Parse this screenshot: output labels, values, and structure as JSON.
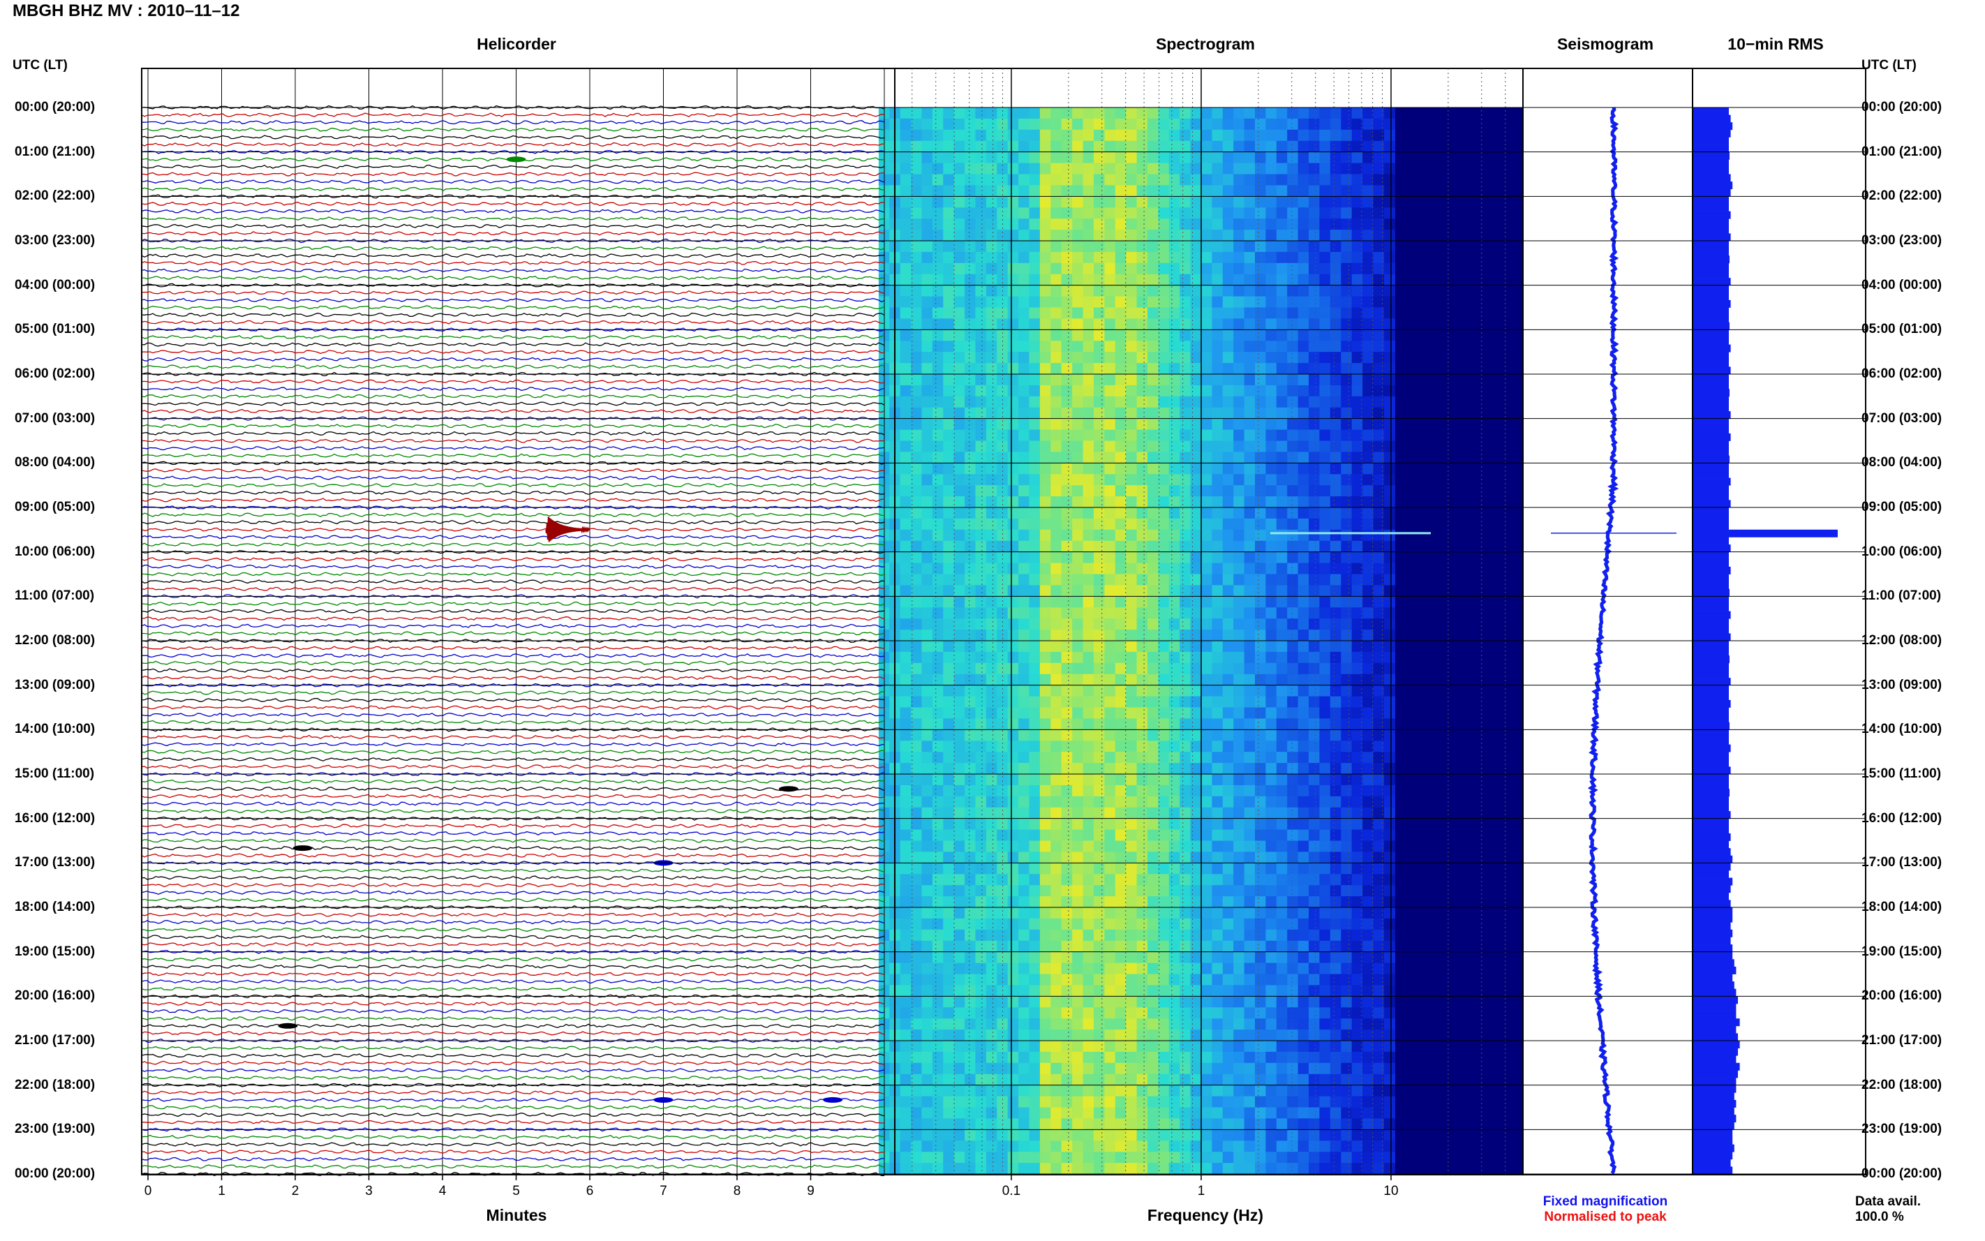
{
  "title": "MBGH BHZ MV : 2010–11–12",
  "panels": {
    "helicorder": "Helicorder",
    "spectrogram": "Spectrogram",
    "seismogram": "Seismogram",
    "rms": "10−min RMS"
  },
  "time_axis": {
    "left_header": "UTC (LT)",
    "right_header": "UTC (LT)",
    "labels": [
      "00:00 (20:00)",
      "01:00 (21:00)",
      "02:00 (22:00)",
      "03:00 (23:00)",
      "04:00 (00:00)",
      "05:00 (01:00)",
      "06:00 (02:00)",
      "07:00 (03:00)",
      "08:00 (04:00)",
      "09:00 (05:00)",
      "10:00 (06:00)",
      "11:00 (07:00)",
      "12:00 (08:00)",
      "13:00 (09:00)",
      "14:00 (10:00)",
      "15:00 (11:00)",
      "16:00 (12:00)",
      "17:00 (13:00)",
      "18:00 (14:00)",
      "19:00 (15:00)",
      "20:00 (16:00)",
      "21:00 (17:00)",
      "22:00 (18:00)",
      "23:00 (19:00)",
      "00:00 (20:00)"
    ]
  },
  "legend": {
    "fixed": "Fixed magnification",
    "normalised": "Normalised to peak",
    "fixed_color": "#1010ee",
    "normalised_color": "#ee1010"
  },
  "data_availability": {
    "label": "Data avail.",
    "value": "100.0 %"
  },
  "colors": {
    "trace_cycle": [
      "#000000",
      "#cc0000",
      "#0000cc",
      "#008800"
    ],
    "event": "#990000",
    "seismogram": "#1020ee",
    "rms_bar": "#1020ee",
    "spectrogram_low": "#00007a",
    "spectrogram_high": "#eeee20"
  },
  "chart_data": [
    {
      "type": "line",
      "name": "Helicorder",
      "title": "Helicorder",
      "xlabel": "Minutes",
      "x_ticks": [
        "0",
        "1",
        "2",
        "3",
        "4",
        "5",
        "6",
        "7",
        "8",
        "9"
      ],
      "xlim": [
        0,
        10
      ],
      "lines_per_hour": 6,
      "hours": 24,
      "events": [
        {
          "time": "09:30",
          "minute": 5.5,
          "type": "large"
        },
        {
          "time": "01:10",
          "minute": 5.0,
          "type": "small"
        },
        {
          "time": "16:40",
          "minute": 2.1,
          "type": "small"
        },
        {
          "time": "17:00",
          "minute": 7.0,
          "type": "small"
        },
        {
          "time": "20:40",
          "minute": 1.9,
          "type": "small"
        },
        {
          "time": "22:20",
          "minute": 7.0,
          "type": "small"
        },
        {
          "time": "22:20",
          "minute": 9.3,
          "type": "small"
        },
        {
          "time": "15:20",
          "minute": 8.7,
          "type": "small"
        }
      ]
    },
    {
      "type": "heatmap",
      "name": "Spectrogram",
      "title": "Spectrogram",
      "xlabel": "Frequency (Hz)",
      "x_ticks": [
        "0.1",
        "1",
        "10"
      ],
      "x_scale": "log",
      "xlim": [
        0.02,
        50
      ],
      "peak_band_hz": [
        0.15,
        0.4
      ]
    },
    {
      "type": "line",
      "name": "Seismogram",
      "title": "Seismogram",
      "spike_time": "09:35"
    },
    {
      "type": "bar",
      "name": "10-min RMS",
      "title": "10−min RMS",
      "orientation": "horizontal",
      "values": [
        1.0,
        1.05,
        1.1,
        1.05,
        1.0,
        1.0,
        1.02,
        1.0,
        1.0,
        1.05,
        1.1,
        1.05,
        1.0,
        1.0,
        1.05,
        1.0,
        1.0,
        1.05,
        1.0,
        1.0,
        1.02,
        1.0,
        1.0,
        1.05,
        1.0,
        1.0,
        1.05,
        1.0,
        1.0,
        1.02,
        1.0,
        1.0,
        1.05,
        1.0,
        1.0,
        1.05,
        1.0,
        1.0,
        1.02,
        1.0,
        1.0,
        1.05,
        1.0,
        1.0,
        1.05,
        1.0,
        1.0,
        1.02,
        1.0,
        1.0,
        1.05,
        1.0,
        1.0,
        1.05,
        1.0,
        1.0,
        1.0,
        4.0,
        1.0,
        1.05,
        1.0,
        1.0,
        1.05,
        1.0,
        1.0,
        1.02,
        1.0,
        1.0,
        1.05,
        1.0,
        1.0,
        1.05,
        1.0,
        1.0,
        1.02,
        1.0,
        1.0,
        1.05,
        1.0,
        1.0,
        1.05,
        1.0,
        1.0,
        1.02,
        1.0,
        1.0,
        1.05,
        1.0,
        1.0,
        1.05,
        1.0,
        1.0,
        1.02,
        1.0,
        1.0,
        1.05,
        1.0,
        1.0,
        1.05,
        1.0,
        1.05,
        1.1,
        1.05,
        1.0,
        1.1,
        1.05,
        1.0,
        1.05,
        1.1,
        1.1,
        1.05,
        1.1,
        1.05,
        1.1,
        1.1,
        1.15,
        1.2,
        1.1,
        1.15,
        1.2,
        1.25,
        1.2,
        1.2,
        1.3,
        1.2,
        1.25,
        1.3,
        1.25,
        1.2,
        1.3,
        1.25,
        1.2,
        1.2,
        1.15,
        1.2,
        1.15,
        1.2,
        1.15,
        1.1,
        1.1,
        1.15,
        1.1,
        1.05,
        1.1
      ]
    }
  ]
}
